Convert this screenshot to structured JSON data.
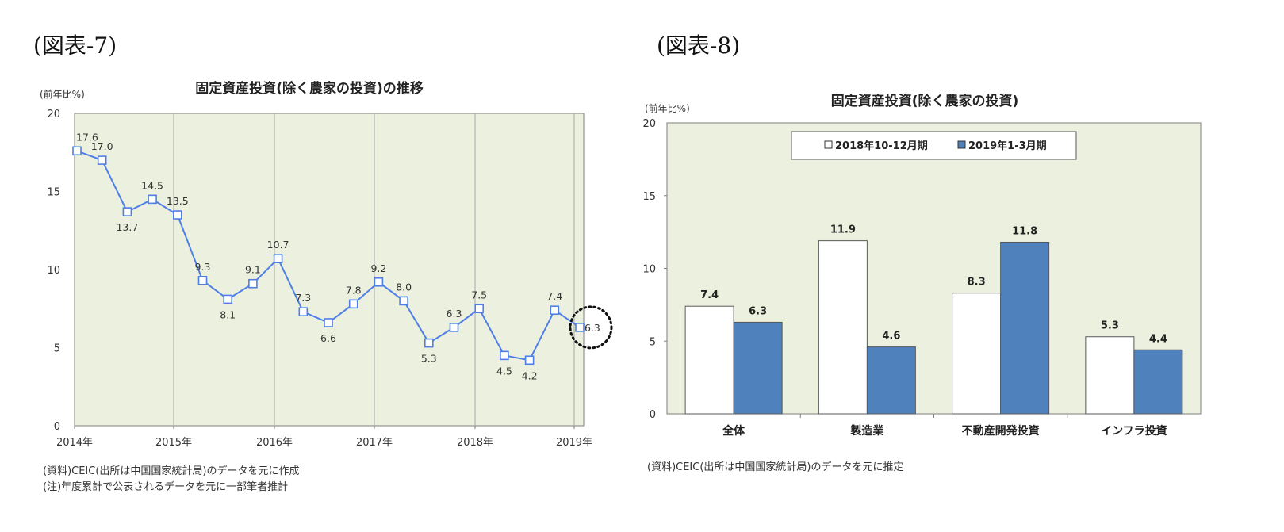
{
  "figures": [
    {
      "label": "(図表-7)",
      "notes": [
        "(資料)CEIC(出所は中国国家統計局)のデータを元に作成",
        "(注)年度累計で公表されるデータを元に一部筆者推計"
      ]
    },
    {
      "label": "(図表-8)",
      "notes": [
        "(資料)CEIC(出所は中国国家統計局)のデータを元に推定"
      ]
    }
  ],
  "chart_data": [
    {
      "type": "line",
      "title": "固定資産投資(除く農家の投資)の推移",
      "ylabel": "(前年比%)",
      "xlabel": "",
      "ylim": [
        0,
        20
      ],
      "yticks": [
        0,
        5,
        10,
        15,
        20
      ],
      "x_tick_labels": [
        "2014年",
        "2015年",
        "2016年",
        "2017年",
        "2018年",
        "2019年"
      ],
      "grid": "vertical",
      "highlight_last_point": true,
      "series": [
        {
          "name": "",
          "color": "#4f7fe6",
          "values": [
            17.6,
            17.0,
            13.7,
            14.5,
            13.5,
            9.3,
            8.1,
            9.1,
            10.7,
            7.3,
            6.6,
            7.8,
            9.2,
            8.0,
            5.3,
            6.3,
            7.5,
            4.5,
            4.2,
            7.4,
            6.3
          ],
          "labels": [
            "17.6",
            "17.0",
            "13.7",
            "14.5",
            "13.5",
            "9.3",
            "8.1",
            "9.1",
            "10.7",
            "7.3",
            "6.6",
            "7.8",
            "9.2",
            "8.0",
            "5.3",
            "6.3",
            "7.5",
            "4.5",
            "4.2",
            "7.4",
            "6.3"
          ]
        }
      ]
    },
    {
      "type": "bar",
      "title": "固定資産投資(除く農家の投資)",
      "ylabel": "(前年比%)",
      "xlabel": "",
      "ylim": [
        0,
        20
      ],
      "yticks": [
        0,
        5,
        10,
        15,
        20
      ],
      "categories": [
        "全体",
        "製造業",
        "不動産開発投資",
        "インフラ投資"
      ],
      "legend": "top",
      "series": [
        {
          "name": "2018年10-12月期",
          "color": "#ffffff",
          "values": [
            7.4,
            11.9,
            8.3,
            5.3
          ],
          "labels": [
            "7.4",
            "11.9",
            "8.3",
            "5.3"
          ]
        },
        {
          "name": "2019年1-3月期",
          "color": "#4f81bd",
          "values": [
            6.3,
            4.6,
            11.8,
            4.4
          ],
          "labels": [
            "6.3",
            "4.6",
            "11.8",
            "4.4"
          ]
        }
      ]
    }
  ]
}
